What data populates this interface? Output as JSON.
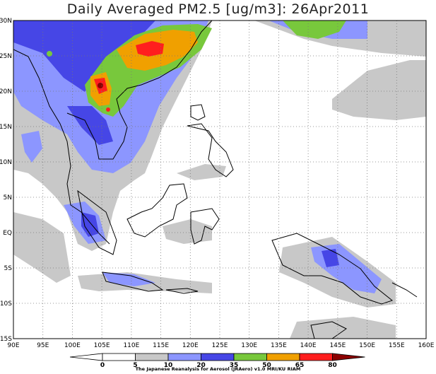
{
  "title": "Daily Averaged PM2.5 [ug/m3]: 26Apr2011",
  "map": {
    "lon_range": [
      90,
      160
    ],
    "lat_range": [
      -15,
      30
    ],
    "lon_ticks": [
      "90E",
      "95E",
      "100E",
      "105E",
      "110E",
      "115E",
      "120E",
      "125E",
      "130E",
      "135E",
      "140E",
      "145E",
      "150E",
      "155E",
      "160E"
    ],
    "lat_ticks": [
      "30N",
      "25N",
      "20N",
      "15N",
      "10N",
      "5N",
      "EQ",
      "5S",
      "10S",
      "15S"
    ],
    "gridlines": true
  },
  "colorbar": {
    "levels": [
      "0",
      "5",
      "10",
      "20",
      "35",
      "50",
      "65",
      "80"
    ],
    "colors": [
      "#ffffff",
      "#ffffff",
      "#c8c8c8",
      "#8c96ff",
      "#4646e6",
      "#78c83c",
      "#f0a000",
      "#ff1e1e",
      "#8c0000"
    ]
  },
  "credit": "The Japanese Reanalysis for Aerosol (JRAero) v1.0 MRI/KU RIAM"
}
